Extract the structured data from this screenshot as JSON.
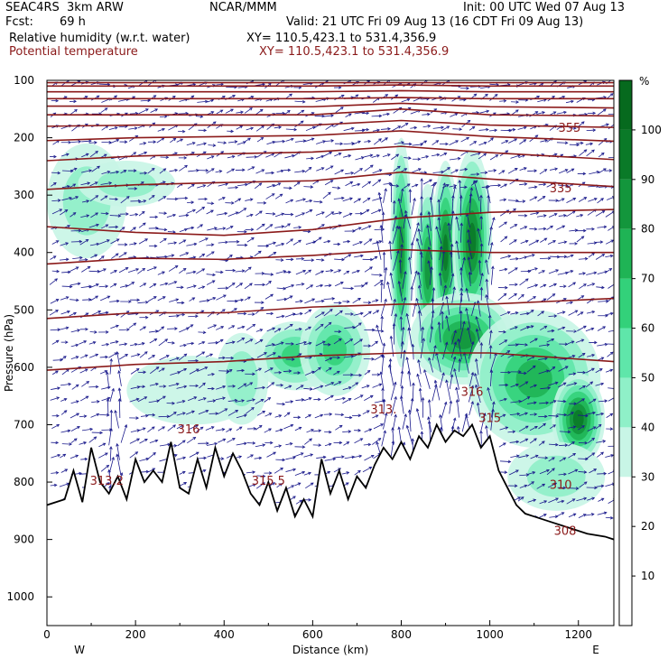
{
  "header": {
    "model": "SEAC4RS  3km ARW",
    "org": "NCAR/MMM",
    "init": "Init: 00 UTC Wed 07 Aug 13",
    "fcst_label": "Fcst:",
    "fcst_value": "69 h",
    "valid": "Valid: 21 UTC Fri 09 Aug 13 (16 CDT Fri 09 Aug 13)",
    "field1": "Relative humidity (w.r.t. water)",
    "field1_xy": "XY= 110.5,423.1 to 531.4,356.9",
    "field2": "Potential temperature",
    "field2_xy": "XY= 110.5,423.1 to 531.4,356.9"
  },
  "colors": {
    "theta": "#8b1a1a",
    "wind": "#1a1a8c",
    "terrain": "#000000",
    "rh_scale": [
      "#ffffff",
      "#ffffff",
      "#ffffff",
      "#c8f5e6",
      "#8ff0c8",
      "#5fe6aa",
      "#33d17a",
      "#1fb455",
      "#13963c",
      "#0a7a28",
      "#066a1e"
    ]
  },
  "chart_data": {
    "type": "cross-section",
    "xlabel": "Distance (km)",
    "ylabel": "Pressure (hPa)",
    "xlim": [
      0,
      1280
    ],
    "ylim": [
      1050,
      100
    ],
    "x_ticks": [
      0,
      200,
      400,
      600,
      800,
      1000,
      1200
    ],
    "y_ticks": [
      100,
      200,
      300,
      400,
      500,
      600,
      700,
      800,
      900,
      1000
    ],
    "x_end_labels": {
      "left": "W",
      "right": "E"
    },
    "colorbar": {
      "unit": "%",
      "ticks": [
        10,
        20,
        30,
        40,
        50,
        60,
        70,
        80,
        90,
        100
      ],
      "range": [
        0,
        110
      ]
    },
    "theta_labels": [
      {
        "text": "355",
        "x": 1180,
        "p": 190
      },
      {
        "text": "335",
        "x": 1160,
        "p": 295
      },
      {
        "text": "316",
        "x": 960,
        "p": 650
      },
      {
        "text": "315",
        "x": 1000,
        "p": 695
      },
      {
        "text": "313.",
        "x": 760,
        "p": 680
      },
      {
        "text": "316",
        "x": 320,
        "p": 715
      },
      {
        "text": "315.5",
        "x": 500,
        "p": 805
      },
      {
        "text": "313.2",
        "x": 135,
        "p": 805
      },
      {
        "text": "310",
        "x": 1160,
        "p": 812
      },
      {
        "text": "308",
        "x": 1170,
        "p": 892
      }
    ],
    "theta_contours_p_at_x": {
      "x": [
        0,
        200,
        400,
        600,
        800,
        1000,
        1280
      ],
      "levels": [
        [
          104,
          104,
          104,
          104,
          104,
          104,
          104
        ],
        [
          110,
          110,
          110,
          110,
          108,
          110,
          110
        ],
        [
          120,
          120,
          120,
          120,
          118,
          120,
          120
        ],
        [
          132,
          132,
          132,
          132,
          130,
          132,
          132
        ],
        [
          145,
          145,
          146,
          146,
          140,
          146,
          148
        ],
        [
          160,
          160,
          160,
          160,
          150,
          160,
          162
        ],
        [
          180,
          178,
          178,
          178,
          170,
          178,
          182
        ],
        [
          205,
          200,
          198,
          196,
          188,
          198,
          206
        ],
        [
          240,
          232,
          228,
          225,
          215,
          226,
          238
        ],
        [
          290,
          282,
          278,
          275,
          260,
          272,
          285
        ],
        [
          355,
          365,
          370,
          360,
          340,
          330,
          325
        ],
        [
          420,
          410,
          412,
          405,
          395,
          400,
          400
        ],
        [
          515,
          505,
          505,
          495,
          490,
          490,
          480
        ],
        [
          605,
          595,
          590,
          580,
          575,
          575,
          590
        ]
      ]
    },
    "terrain_p": {
      "x": [
        0,
        40,
        60,
        80,
        100,
        120,
        140,
        160,
        180,
        200,
        220,
        240,
        260,
        280,
        300,
        320,
        340,
        360,
        380,
        400,
        420,
        440,
        460,
        480,
        500,
        520,
        540,
        560,
        580,
        600,
        620,
        640,
        660,
        680,
        700,
        720,
        740,
        760,
        780,
        800,
        820,
        840,
        860,
        880,
        900,
        920,
        940,
        960,
        980,
        1000,
        1020,
        1040,
        1060,
        1080,
        1100,
        1140,
        1180,
        1220,
        1260,
        1280
      ],
      "p": [
        840,
        830,
        780,
        835,
        740,
        800,
        820,
        790,
        830,
        760,
        800,
        780,
        800,
        730,
        810,
        820,
        760,
        810,
        740,
        790,
        750,
        780,
        820,
        840,
        800,
        850,
        810,
        860,
        830,
        860,
        760,
        820,
        780,
        830,
        790,
        810,
        770,
        740,
        760,
        730,
        760,
        720,
        740,
        700,
        730,
        710,
        720,
        700,
        740,
        720,
        780,
        810,
        840,
        855,
        860,
        870,
        880,
        890,
        895,
        900
      ]
    },
    "rh_blobs": [
      {
        "x": 90,
        "p": 310,
        "rx": 90,
        "ry": 100,
        "rh": 45
      },
      {
        "x": 180,
        "p": 280,
        "rx": 110,
        "ry": 40,
        "rh": 40
      },
      {
        "x": 560,
        "p": 580,
        "rx": 90,
        "ry": 60,
        "rh": 60
      },
      {
        "x": 650,
        "p": 570,
        "rx": 80,
        "ry": 80,
        "rh": 65
      },
      {
        "x": 800,
        "p": 400,
        "rx": 25,
        "ry": 200,
        "rh": 80
      },
      {
        "x": 860,
        "p": 430,
        "rx": 30,
        "ry": 150,
        "rh": 85
      },
      {
        "x": 900,
        "p": 400,
        "rx": 30,
        "ry": 160,
        "rh": 95
      },
      {
        "x": 960,
        "p": 380,
        "rx": 45,
        "ry": 160,
        "rh": 95
      },
      {
        "x": 940,
        "p": 550,
        "rx": 120,
        "ry": 80,
        "rh": 85
      },
      {
        "x": 1100,
        "p": 620,
        "rx": 150,
        "ry": 120,
        "rh": 75
      },
      {
        "x": 1200,
        "p": 690,
        "rx": 60,
        "ry": 80,
        "rh": 90
      },
      {
        "x": 1150,
        "p": 790,
        "rx": 110,
        "ry": 60,
        "rh": 45
      },
      {
        "x": 330,
        "p": 640,
        "rx": 150,
        "ry": 60,
        "rh": 35
      },
      {
        "x": 440,
        "p": 620,
        "rx": 60,
        "ry": 80,
        "rh": 40
      }
    ]
  }
}
